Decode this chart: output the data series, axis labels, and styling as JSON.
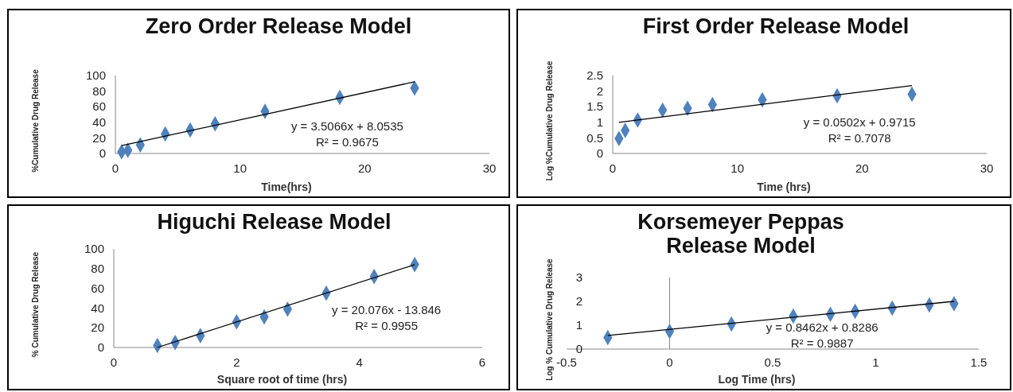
{
  "chart_data": [
    {
      "type": "scatter",
      "title": "Zero Order Release Model",
      "xlabel": "Time(hrs)",
      "ylabel": "%Cumulative Drug Release",
      "xlim": [
        0,
        30
      ],
      "xticks": [
        0,
        10,
        20,
        30
      ],
      "ylim": [
        0,
        100
      ],
      "yticks": [
        0,
        20,
        40,
        60,
        80,
        100
      ],
      "marker": "diamond",
      "annotations": [
        "y = 3.5066x + 8.0535",
        "R² = 0.9675"
      ],
      "series": [
        {
          "color": "#4f81bd",
          "x": [
            0.5,
            1,
            2,
            4,
            6,
            8,
            12,
            18,
            24
          ],
          "values": [
            2,
            4,
            11,
            25,
            30,
            38,
            54,
            72,
            84
          ]
        },
        {
          "type": "line",
          "marker": "none",
          "color": "#000000",
          "x": [
            0.5,
            24
          ],
          "values": [
            10,
            92
          ]
        }
      ]
    },
    {
      "type": "scatter",
      "title": "First Order Release Model",
      "xlabel": "Time (hrs)",
      "ylabel": "Log %Cumulative Drug Release",
      "xlim": [
        0,
        30
      ],
      "xticks": [
        0,
        10,
        20,
        30
      ],
      "ylim": [
        0,
        2.5
      ],
      "yticks": [
        0,
        0.5,
        1,
        1.5,
        2,
        2.5
      ],
      "marker": "diamond",
      "annotations": [
        "y = 0.0502x + 0.9715",
        "R² = 0.7078"
      ],
      "series": [
        {
          "color": "#4f81bd",
          "x": [
            0.5,
            1,
            2,
            4,
            6,
            8,
            12,
            18,
            24
          ],
          "values": [
            0.48,
            0.74,
            1.07,
            1.39,
            1.45,
            1.57,
            1.72,
            1.85,
            1.9
          ]
        },
        {
          "type": "line",
          "marker": "none",
          "color": "#000000",
          "x": [
            0.5,
            24
          ],
          "values": [
            1.0,
            2.18
          ]
        }
      ]
    },
    {
      "type": "scatter",
      "title": "Higuchi Release Model",
      "xlabel": "Square root of time (hrs)",
      "ylabel": "% Cumulative Drug Release",
      "xlim": [
        0,
        6
      ],
      "xticks": [
        0,
        2,
        4,
        6
      ],
      "ylim": [
        0,
        100
      ],
      "yticks": [
        0,
        20,
        40,
        60,
        80,
        100
      ],
      "marker": "diamond",
      "annotations": [
        "y = 20.076x - 13.846",
        "R² = 0.9955"
      ],
      "series": [
        {
          "color": "#4f81bd",
          "x": [
            0.71,
            1,
            1.41,
            2,
            2.45,
            2.83,
            3.46,
            4.24,
            4.9
          ],
          "values": [
            2,
            5,
            12,
            26,
            31,
            39,
            55,
            72,
            84
          ]
        },
        {
          "type": "line",
          "marker": "none",
          "color": "#000000",
          "x": [
            0.71,
            4.9
          ],
          "values": [
            0,
            84
          ]
        }
      ]
    },
    {
      "type": "scatter",
      "title": "Korsemeyer Peppas Release Model",
      "xlabel": "Log Time (hrs)",
      "ylabel": "Log % Cumulative Drug Release",
      "xlim": [
        -0.5,
        1.5
      ],
      "xticks": [
        -0.5,
        0,
        0.5,
        1,
        1.5
      ],
      "ylim": [
        0,
        3
      ],
      "yticks": [
        0,
        1,
        2,
        3
      ],
      "marker": "diamond",
      "annotations": [
        "y = 0.8462x + 0.8286",
        "R² = 0.9887"
      ],
      "series": [
        {
          "color": "#4f81bd",
          "x": [
            -0.3,
            0,
            0.3,
            0.6,
            0.78,
            0.9,
            1.08,
            1.26,
            1.38
          ],
          "values": [
            0.48,
            0.74,
            1.05,
            1.38,
            1.46,
            1.58,
            1.72,
            1.85,
            1.9
          ]
        },
        {
          "type": "line",
          "marker": "none",
          "color": "#000000",
          "x": [
            -0.3,
            1.38
          ],
          "values": [
            0.57,
            2.0
          ]
        }
      ]
    }
  ]
}
